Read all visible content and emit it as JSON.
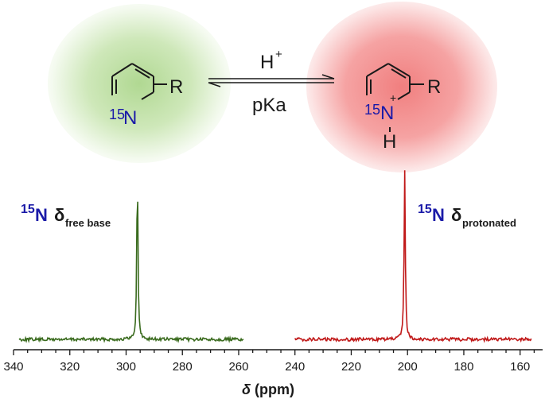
{
  "reaction": {
    "reagent": "H",
    "reagent_charge": "+",
    "condition": "pKa"
  },
  "molecules": {
    "free_base": {
      "isotope": "15",
      "atom": "N",
      "substituent": "R"
    },
    "protonated": {
      "isotope": "15",
      "atom": "N",
      "charge": "+",
      "hydrogen": "H",
      "substituent": "R"
    }
  },
  "labels": {
    "free_base": {
      "isotope": "15",
      "atom": "N",
      "symbol": "δ",
      "subscript": "free base"
    },
    "protonated": {
      "isotope": "15",
      "atom": "N",
      "symbol": "δ",
      "subscript": "protonated"
    }
  },
  "colors": {
    "free_base_spectrum": "#3a6b1e",
    "protonated_spectrum": "#c01818",
    "isotope_label": "#1a1aa8",
    "glow_green": "#b8dca0",
    "glow_red": "#f09090"
  },
  "chart_data": {
    "type": "line",
    "xlabel_symbol": "δ",
    "xlabel_unit": "(ppm)",
    "x_reversed": true,
    "xlim": [
      340,
      152
    ],
    "x_ticks": [
      340,
      320,
      300,
      280,
      260,
      240,
      220,
      200,
      180,
      160
    ],
    "series": [
      {
        "name": "free base",
        "range": [
          338,
          258
        ],
        "peak_position": 296,
        "peak_height": 1.0
      },
      {
        "name": "protonated",
        "range": [
          240,
          156
        ],
        "peak_position": 201,
        "peak_height": 1.0
      }
    ]
  }
}
